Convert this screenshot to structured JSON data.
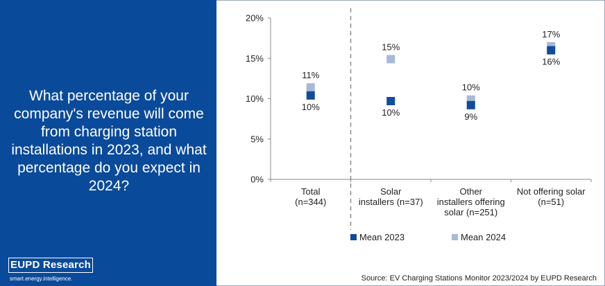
{
  "question": "What percentage of your company's revenue will come from charging station installations in 2023, and what percentage do you expect in 2024?",
  "logo": {
    "name": "EUPD Research",
    "tagline": "smart.energy.intelligence."
  },
  "source": "Source: EV Charging Stations Monitor 2023/2024 by EUPD Research",
  "colors": {
    "panel": "#0a4a9a",
    "mean_2023": "#0f4c9c",
    "mean_2024": "#a8b8d8",
    "divider": "#8a8a8a"
  },
  "chart_data": {
    "type": "scatter",
    "categories": [
      [
        "Total",
        "(n=344)"
      ],
      [
        "Solar",
        "installers (n=37)"
      ],
      [
        "Other",
        "installers offering",
        "solar (n=251)"
      ],
      [
        "Not offering solar",
        "(n=51)"
      ]
    ],
    "series": [
      {
        "name": "Mean 2023",
        "values": [
          10.4,
          9.7,
          9.2,
          16.0
        ],
        "labels": [
          "10%",
          "10%",
          "9%",
          "16%"
        ]
      },
      {
        "name": "Mean 2024",
        "values": [
          11.4,
          14.9,
          9.9,
          16.5
        ],
        "labels": [
          "11%",
          "15%",
          "10%",
          "17%"
        ]
      }
    ],
    "yticks": [
      "0%",
      "5%",
      "10%",
      "15%",
      "20%"
    ],
    "ytick_values": [
      0,
      5,
      10,
      15,
      20
    ],
    "ylim": [
      0,
      20
    ],
    "grid": false,
    "divider_after_category": 0,
    "legend_position": "bottom"
  }
}
